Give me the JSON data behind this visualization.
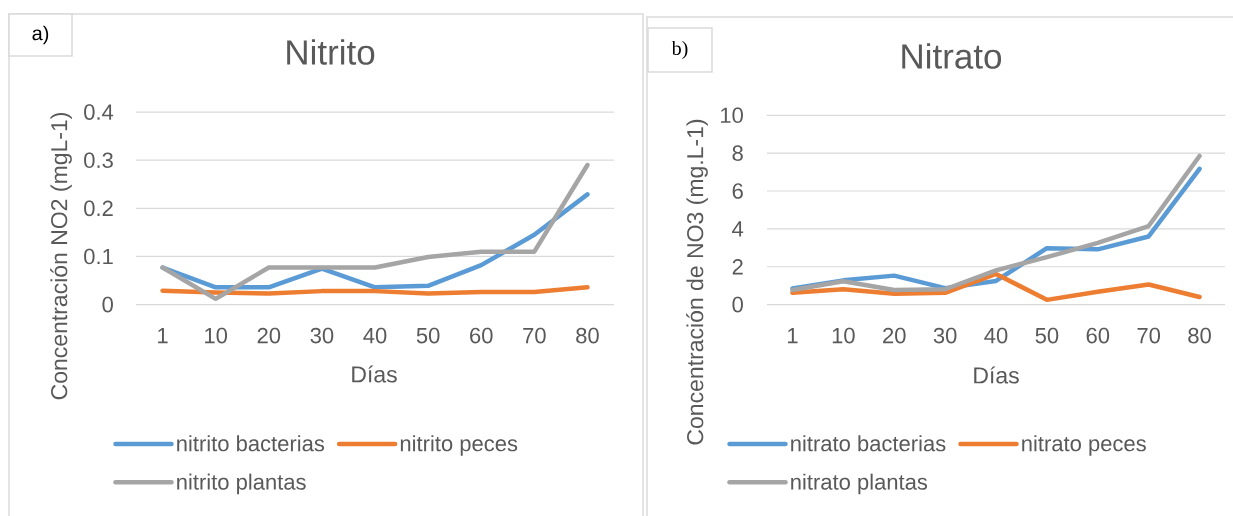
{
  "chart_data": [
    {
      "type": "line",
      "title": "Nitrito",
      "xlabel": "Días",
      "ylabel": "Concentración NO2 (mgL-1)",
      "categories": [
        "1",
        "10",
        "20",
        "30",
        "40",
        "50",
        "60",
        "70",
        "80"
      ],
      "series": [
        {
          "name": "nitrito bacterias",
          "color": "#5b9bd5",
          "values": [
            0.077,
            0.036,
            0.036,
            0.075,
            0.036,
            0.039,
            0.082,
            0.145,
            0.229
          ]
        },
        {
          "name": "nitrito peces",
          "color": "#ed7d31",
          "values": [
            0.029,
            0.025,
            0.023,
            0.028,
            0.028,
            0.023,
            0.026,
            0.026,
            0.036
          ]
        },
        {
          "name": "nitrito plantas",
          "color": "#a5a5a5",
          "values": [
            0.077,
            0.012,
            0.077,
            0.077,
            0.077,
            0.099,
            0.11,
            0.11,
            0.29
          ]
        }
      ],
      "ylim": [
        0,
        0.4
      ],
      "yticks": [
        0,
        0.1,
        0.2,
        0.3,
        0.4
      ],
      "grid": "y",
      "legend": "bottom",
      "annotations": [
        "a)"
      ]
    },
    {
      "type": "line",
      "title": "Nitrato",
      "xlabel": "Días",
      "ylabel": "Concentración de NO3 (mg.L-1)",
      "categories": [
        "1",
        "10",
        "20",
        "30",
        "40",
        "50",
        "60",
        "70",
        "80"
      ],
      "series": [
        {
          "name": "nitrato bacterias",
          "color": "#5b9bd5",
          "values": [
            0.85,
            1.28,
            1.53,
            0.87,
            1.25,
            2.98,
            2.92,
            3.6,
            7.17
          ]
        },
        {
          "name": "nitrato peces",
          "color": "#ed7d31",
          "values": [
            0.62,
            0.81,
            0.57,
            0.62,
            1.62,
            0.25,
            0.68,
            1.06,
            0.4
          ]
        },
        {
          "name": "nitrato plantas",
          "color": "#a5a5a5",
          "values": [
            0.77,
            1.23,
            0.77,
            0.81,
            1.81,
            2.51,
            3.26,
            4.15,
            7.85
          ]
        }
      ],
      "ylim": [
        0,
        10
      ],
      "yticks": [
        0,
        2,
        4,
        6,
        8,
        10
      ],
      "grid": "y",
      "legend": "bottom",
      "annotations": [
        "b)"
      ]
    }
  ]
}
